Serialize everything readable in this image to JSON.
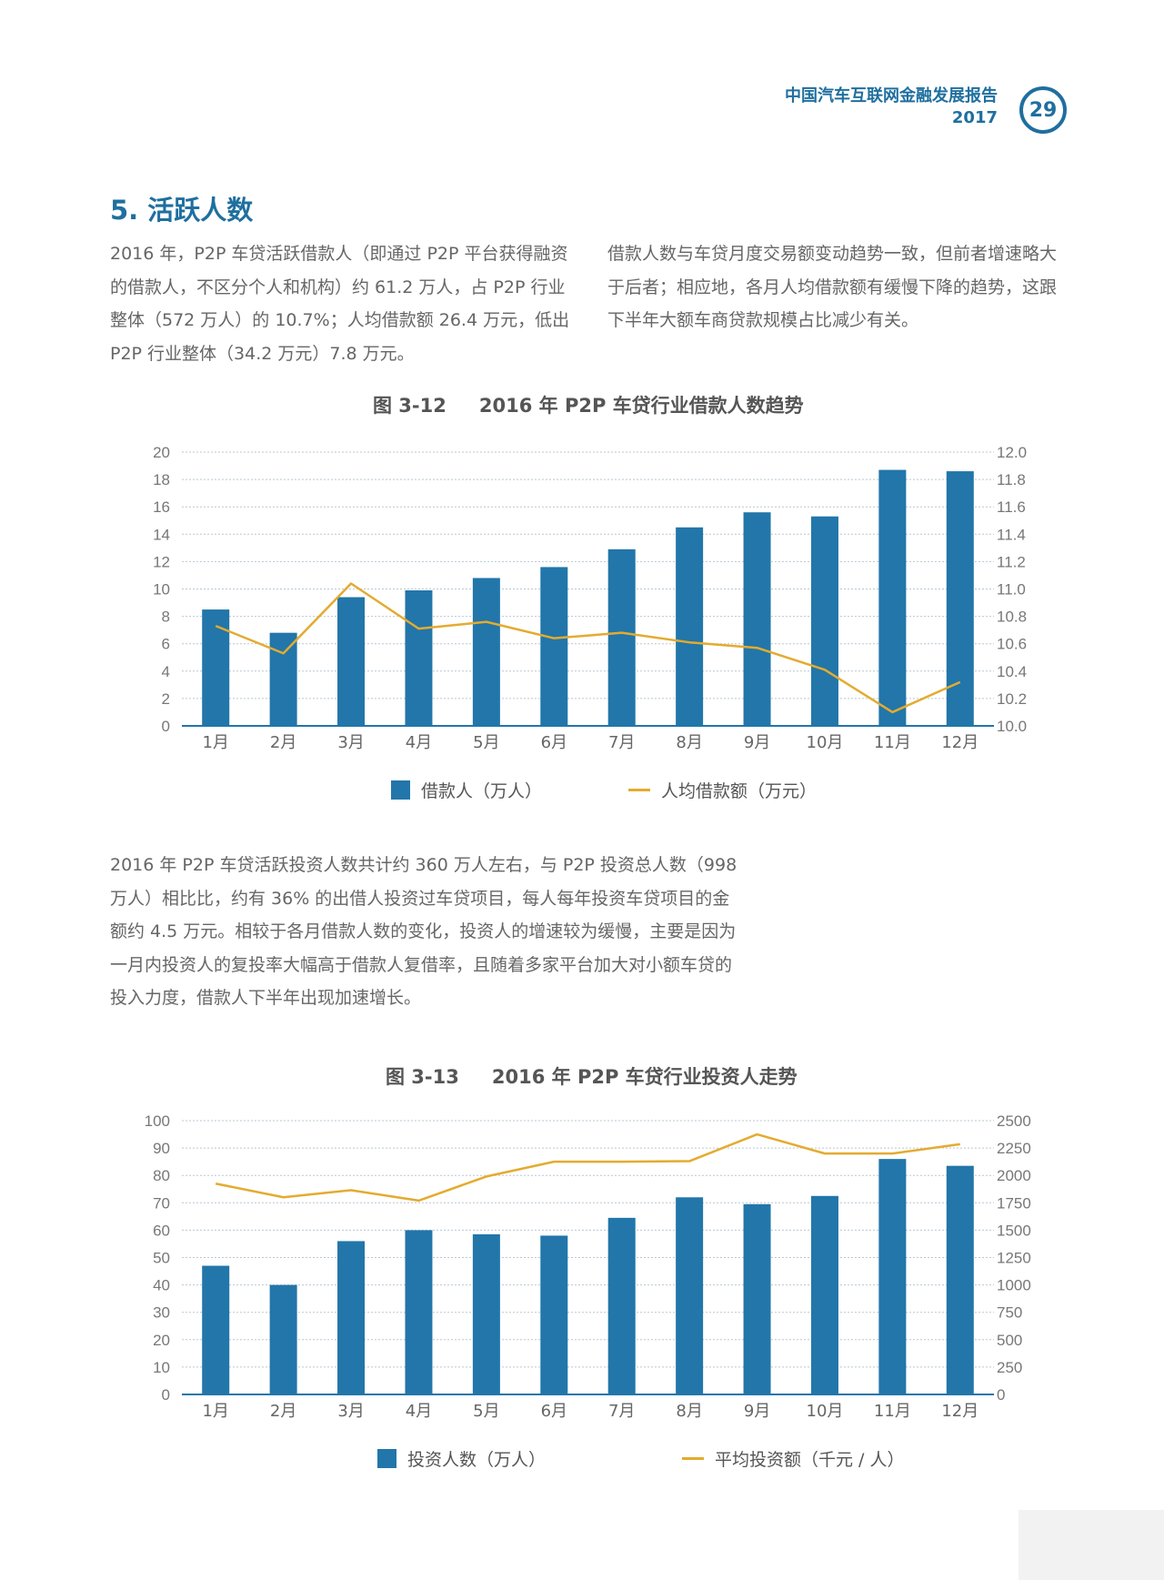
{
  "header": {
    "report_title": "中国汽车互联网金融发展报告",
    "year": "2017",
    "page_number": "29"
  },
  "section": {
    "heading": "5. 活跃人数"
  },
  "paragraphs": {
    "p1": "2016 年，P2P 车贷活跃借款人（即通过 P2P 平台获得融资的借款人，不区分个人和机构）约 61.2 万人，占 P2P 行业整体（572 万人）的 10.7%；人均借款额 26.4 万元，低出 P2P 行业整体（34.2 万元）7.8 万元。",
    "p2": "借款人数与车贷月度交易额变动趋势一致，但前者增速略大于后者；相应地，各月人均借款额有缓慢下降的趋势，这跟下半年大额车商贷款规模占比减少有关。",
    "p3": "2016 年 P2P 车贷活跃投资人数共计约 360 万人左右，与 P2P 投资总人数（998 万人）相比比，约有 36% 的出借人投资过车贷项目，每人每年投资车贷项目的金额约 4.5 万元。相较于各月借款人数的变化，投资人的增速较为缓慢，主要是因为一月内投资人的复投率大幅高于借款人复借率，且随着多家平台加大对小额车贷的投入力度，借款人下半年出现加速增长。"
  },
  "colors": {
    "accent": "#1f6f9f",
    "bar": "#2276a9",
    "line": "#e3ab2f"
  },
  "chart_data": [
    {
      "type": "bar",
      "figure_number": "图 3-12",
      "title": "2016 年 P2P 车贷行业借款人数趋势",
      "categories": [
        "1月",
        "2月",
        "3月",
        "4月",
        "5月",
        "6月",
        "7月",
        "8月",
        "9月",
        "10月",
        "11月",
        "12月"
      ],
      "series": [
        {
          "name": "借款人（万人）",
          "type": "bar",
          "axis": "left",
          "values": [
            8.5,
            6.8,
            9.4,
            9.9,
            10.8,
            11.6,
            12.9,
            14.5,
            15.6,
            15.3,
            18.7,
            18.6
          ]
        },
        {
          "name": "人均借款额（万元）",
          "type": "line",
          "axis": "right",
          "values": [
            10.73,
            10.53,
            11.04,
            10.71,
            10.76,
            10.64,
            10.68,
            10.61,
            10.57,
            10.41,
            10.1,
            10.32
          ]
        }
      ],
      "ylim_left": [
        0,
        20
      ],
      "yticks_left": [
        "0",
        "2",
        "4",
        "6",
        "8",
        "10",
        "12",
        "14",
        "16",
        "18",
        "20"
      ],
      "ylim_right": [
        10.0,
        12.0
      ],
      "yticks_right": [
        "10.0",
        "10.2",
        "10.4",
        "10.6",
        "10.8",
        "11.0",
        "11.2",
        "11.4",
        "11.6",
        "11.8",
        "12.0"
      ],
      "grid": true,
      "legend": "bottom"
    },
    {
      "type": "bar",
      "figure_number": "图 3-13",
      "title": "2016 年 P2P 车贷行业投资人走势",
      "categories": [
        "1月",
        "2月",
        "3月",
        "4月",
        "5月",
        "6月",
        "7月",
        "8月",
        "9月",
        "10月",
        "11月",
        "12月"
      ],
      "series": [
        {
          "name": "投资人数（万人）",
          "type": "bar",
          "axis": "left",
          "values": [
            47,
            40,
            56,
            60,
            58.5,
            58,
            64.5,
            72,
            69.5,
            72.5,
            86,
            83.5
          ]
        },
        {
          "name": "平均投资额（千元 / 人）",
          "type": "line",
          "axis": "right",
          "values": [
            1925,
            1800,
            1865,
            1770,
            1990,
            2125,
            2125,
            2130,
            2375,
            2200,
            2200,
            2285
          ]
        }
      ],
      "ylim_left": [
        0,
        100
      ],
      "yticks_left": [
        "0",
        "10",
        "20",
        "30",
        "40",
        "50",
        "60",
        "70",
        "80",
        "90",
        "100"
      ],
      "ylim_right": [
        0,
        2500
      ],
      "yticks_right": [
        "0",
        "250",
        "500",
        "750",
        "1000",
        "1250",
        "1500",
        "1750",
        "2000",
        "2250",
        "2500"
      ],
      "grid": true,
      "legend": "bottom"
    }
  ]
}
